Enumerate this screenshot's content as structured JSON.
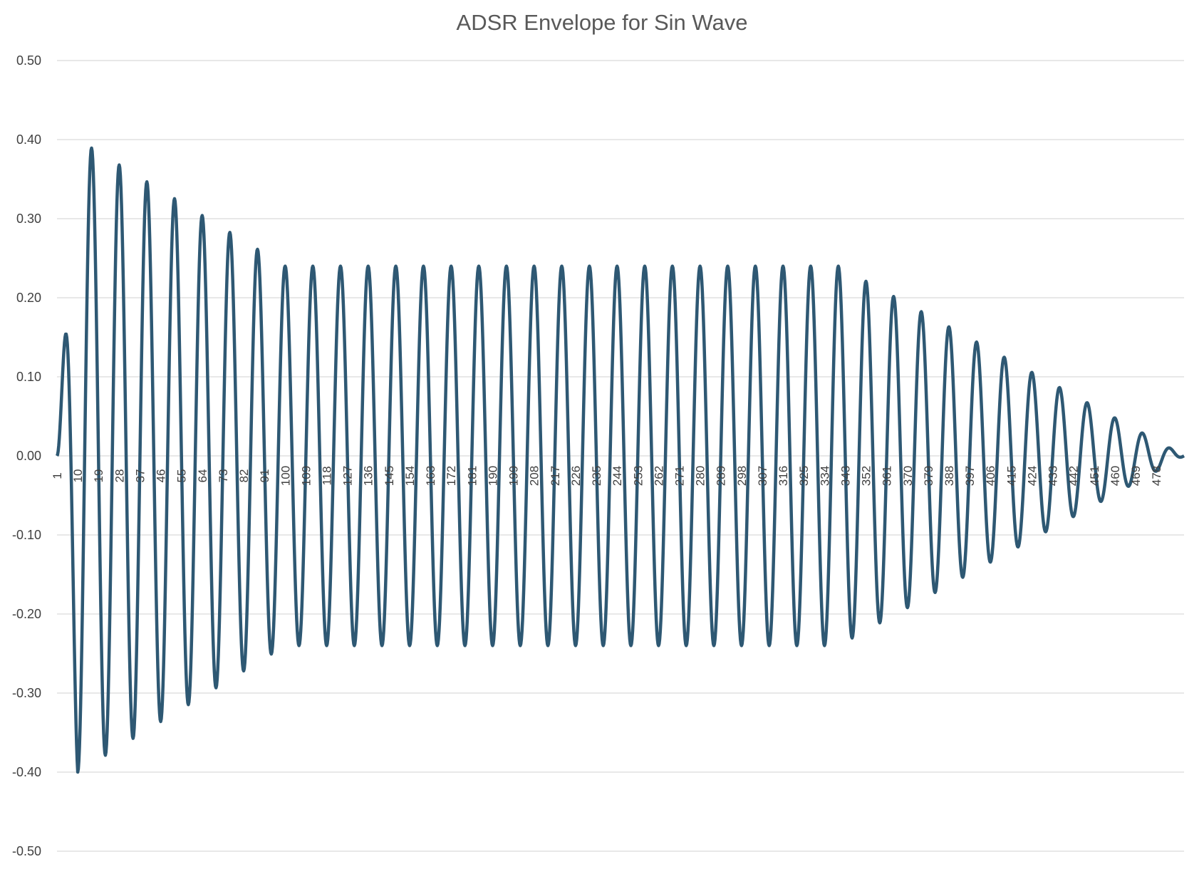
{
  "chart_data": {
    "type": "line",
    "title": "ADSR Envelope for Sin Wave",
    "xlabel": "",
    "ylabel": "",
    "ylim": [
      -0.5,
      0.5
    ],
    "xlim": [
      1,
      490
    ],
    "grid": true,
    "legend": "none",
    "y_ticks": [
      "0.50",
      "0.40",
      "0.30",
      "0.20",
      "0.10",
      "0.00",
      "-0.10",
      "-0.20",
      "-0.30",
      "-0.40",
      "-0.50"
    ],
    "y_tick_values": [
      0.5,
      0.4,
      0.3,
      0.2,
      0.1,
      0.0,
      -0.1,
      -0.2,
      -0.3,
      -0.4,
      -0.5
    ],
    "x_ticks": [
      "1",
      "10",
      "19",
      "28",
      "37",
      "46",
      "55",
      "64",
      "73",
      "82",
      "91",
      "100",
      "109",
      "118",
      "127",
      "136",
      "145",
      "154",
      "163",
      "172",
      "181",
      "190",
      "199",
      "208",
      "217",
      "226",
      "235",
      "244",
      "253",
      "262",
      "271",
      "280",
      "289",
      "298",
      "307",
      "316",
      "325",
      "334",
      "343",
      "352",
      "361",
      "370",
      "379",
      "388",
      "397",
      "406",
      "415",
      "424",
      "433",
      "442",
      "451",
      "460",
      "469",
      "478"
    ],
    "x_tick_values": [
      1,
      10,
      19,
      28,
      37,
      46,
      55,
      64,
      73,
      82,
      91,
      100,
      109,
      118,
      127,
      136,
      145,
      154,
      163,
      172,
      181,
      190,
      199,
      208,
      217,
      226,
      235,
      244,
      253,
      262,
      271,
      280,
      289,
      298,
      307,
      316,
      325,
      334,
      343,
      352,
      361,
      370,
      379,
      388,
      397,
      406,
      415,
      424,
      433,
      442,
      451,
      460,
      469,
      478
    ],
    "series": [
      {
        "color": "#2e5873",
        "period": 12,
        "envelope": {
          "attack_end": 10,
          "attack_peak": 0.4,
          "decay_end": 100,
          "sustain_level": 0.24,
          "release_start": 340,
          "release_end": 490
        }
      }
    ]
  }
}
